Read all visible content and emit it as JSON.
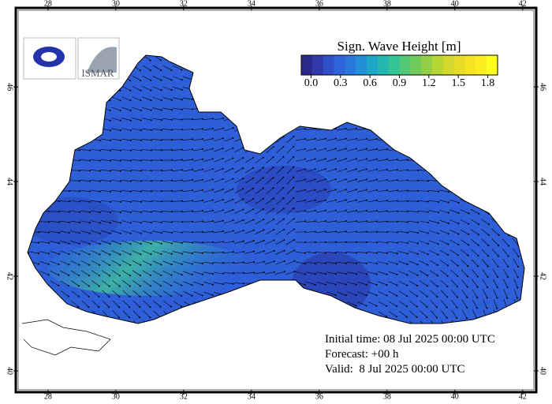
{
  "map": {
    "title": "Sign. Wave Height [m]",
    "lon_ticks": [
      28,
      30,
      32,
      34,
      36,
      38,
      40,
      42
    ],
    "lat_ticks": [
      40,
      42,
      44,
      46
    ],
    "lon_lim": [
      27.05,
      42.4
    ],
    "lat_lim": [
      39.55,
      47.67
    ],
    "colorbar": {
      "lim": [
        -0.1,
        1.9
      ],
      "ticks": [
        {
          "value": 0,
          "label": "0.0"
        },
        0.3,
        0.6,
        0.9,
        1.2,
        1.5,
        1.8
      ],
      "colors": [
        "#2b2a8a",
        "#2f3aa8",
        "#3050c8",
        "#2f63d8",
        "#2a78dc",
        "#2390d6",
        "#1ea6c8",
        "#22b8b0",
        "#34c494",
        "#52c878",
        "#72cc5c",
        "#94d046",
        "#b6d434",
        "#d2d82c",
        "#e8dc28",
        "#f6e424",
        "#fcee22",
        "#ffff20"
      ]
    },
    "logo": "ISMAR",
    "info": [
      "Initial time: 08 Jul 2025 00:00 UTC",
      "Forecast: +00 h",
      "Valid:  8 Jul 2025 00:00 UTC"
    ]
  }
}
